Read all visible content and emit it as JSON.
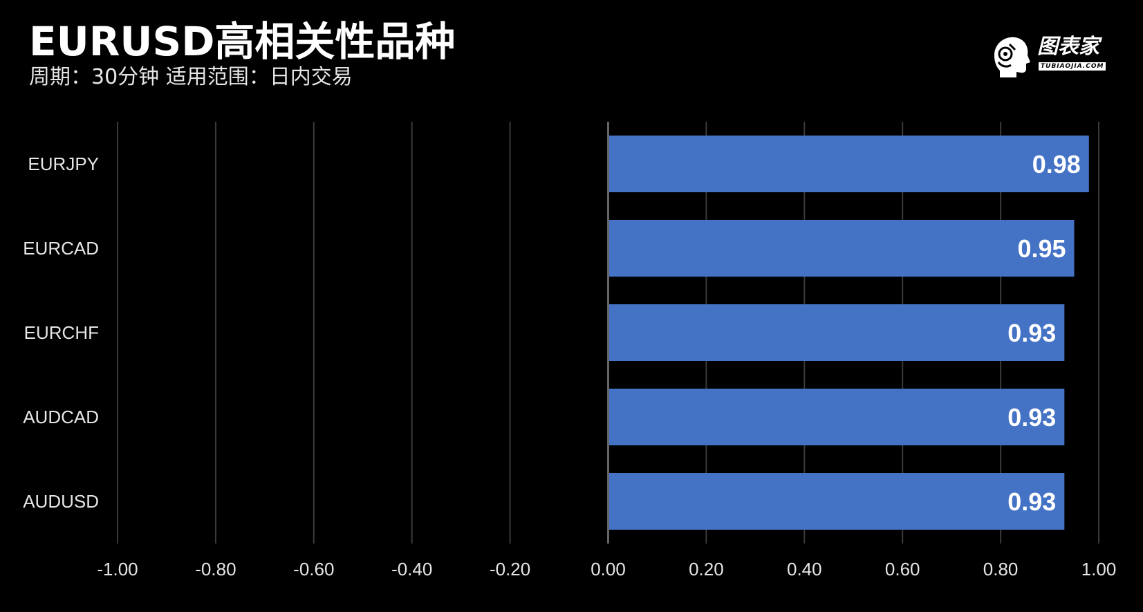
{
  "header": {
    "title": "EURUSD高相关性品种",
    "subtitle": "周期：30分钟  适用范围：日内交易"
  },
  "logo": {
    "name": "图表家",
    "domain": "TUBIAOJIA.COM",
    "icon": "head-profile-icon"
  },
  "colors": {
    "background": "#000000",
    "bar": "#4472c4",
    "grid": "#3a3a3a",
    "zero_line": "#666666",
    "text": "#e6e6e6"
  },
  "chart_data": {
    "type": "bar",
    "orientation": "horizontal",
    "categories": [
      "EURJPY",
      "EURCAD",
      "EURCHF",
      "AUDCAD",
      "AUDUSD"
    ],
    "values": [
      0.98,
      0.95,
      0.93,
      0.93,
      0.93
    ],
    "value_labels": [
      "0.98",
      "0.95",
      "0.93",
      "0.93",
      "0.93"
    ],
    "xlim": [
      -1.0,
      1.0
    ],
    "ticks": [
      -1.0,
      -0.8,
      -0.6,
      -0.4,
      -0.2,
      0.0,
      0.2,
      0.4,
      0.6,
      0.8,
      1.0
    ],
    "tick_labels": [
      "-1.00",
      "-0.80",
      "-0.60",
      "-0.40",
      "-0.20",
      "0.00",
      "0.20",
      "0.40",
      "0.60",
      "0.80",
      "1.00"
    ],
    "grid": true,
    "legend": "none"
  }
}
